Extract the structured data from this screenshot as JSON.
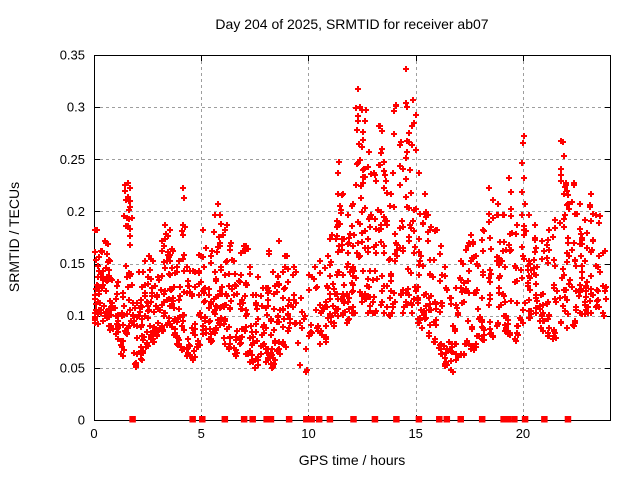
{
  "page": {
    "background": "#ffffff"
  },
  "chart_data": {
    "type": "scatter",
    "title": "Day 204 of 2025, SRMTID for receiver ab07",
    "xlabel": "GPS time / hours",
    "ylabel": "SRMTID / TECUs",
    "xlim": [
      0,
      24.06
    ],
    "ylim": [
      0,
      0.35
    ],
    "xticks": {
      "values": [
        0,
        5,
        10,
        15,
        20
      ],
      "labels": [
        "0",
        "5",
        "10",
        "15",
        "20"
      ]
    },
    "yticks": {
      "values": [
        0,
        0.05,
        0.1,
        0.15,
        0.2,
        0.25,
        0.3,
        0.35
      ],
      "labels": [
        "0",
        "0.05",
        "0.1",
        "0.15",
        "0.2",
        "0.25",
        "0.3",
        "0.35"
      ]
    },
    "grid": {
      "on": true,
      "color": "#9e9e9e",
      "dash": "3,3"
    },
    "axis_color": "#000000",
    "marker": {
      "shape": "plus",
      "color": "#ff0000",
      "size": 7,
      "stroke": 2
    },
    "zero_marker": {
      "shape": "filled-square",
      "color": "#ff0000",
      "size": 6.5
    },
    "legend": "none",
    "observed": {
      "ymax": 0.34,
      "ymax_at_hour": 14.65,
      "bulk_range": [
        0.05,
        0.2
      ]
    },
    "clusters_format": "[hour_center, point_count, y_min, y_max] per vertical pass column",
    "clusters": [
      [
        0.1,
        25,
        0.09,
        0.185
      ],
      [
        0.3,
        20,
        0.1,
        0.165
      ],
      [
        0.55,
        22,
        0.095,
        0.175
      ],
      [
        0.8,
        18,
        0.085,
        0.155
      ],
      [
        1.05,
        15,
        0.075,
        0.135
      ],
      [
        1.3,
        15,
        0.06,
        0.125
      ],
      [
        1.55,
        25,
        0.08,
        0.23
      ],
      [
        1.75,
        20,
        0.09,
        0.225
      ],
      [
        1.95,
        12,
        0.05,
        0.115
      ],
      [
        2.2,
        22,
        0.055,
        0.145
      ],
      [
        2.45,
        20,
        0.07,
        0.16
      ],
      [
        2.7,
        18,
        0.075,
        0.155
      ],
      [
        2.95,
        14,
        0.08,
        0.14
      ],
      [
        3.2,
        20,
        0.085,
        0.175
      ],
      [
        3.45,
        22,
        0.09,
        0.19
      ],
      [
        3.7,
        18,
        0.08,
        0.165
      ],
      [
        3.95,
        16,
        0.07,
        0.155
      ],
      [
        4.15,
        18,
        0.065,
        0.225
      ],
      [
        4.4,
        16,
        0.06,
        0.15
      ],
      [
        4.65,
        14,
        0.055,
        0.145
      ],
      [
        4.9,
        16,
        0.07,
        0.16
      ],
      [
        5.15,
        18,
        0.08,
        0.185
      ],
      [
        5.4,
        16,
        0.075,
        0.165
      ],
      [
        5.65,
        18,
        0.08,
        0.2
      ],
      [
        5.85,
        18,
        0.09,
        0.21
      ],
      [
        6.1,
        20,
        0.07,
        0.19
      ],
      [
        6.35,
        16,
        0.065,
        0.17
      ],
      [
        6.6,
        14,
        0.06,
        0.155
      ],
      [
        6.85,
        16,
        0.07,
        0.165
      ],
      [
        7.1,
        18,
        0.06,
        0.17
      ],
      [
        7.35,
        16,
        0.055,
        0.15
      ],
      [
        7.6,
        14,
        0.05,
        0.14
      ],
      [
        7.85,
        12,
        0.06,
        0.13
      ],
      [
        8.1,
        18,
        0.055,
        0.165
      ],
      [
        8.35,
        20,
        0.05,
        0.145
      ],
      [
        8.6,
        18,
        0.06,
        0.175
      ],
      [
        8.85,
        14,
        0.07,
        0.16
      ],
      [
        9.1,
        12,
        0.085,
        0.16
      ],
      [
        9.35,
        10,
        0.09,
        0.15
      ],
      [
        9.6,
        6,
        0.05,
        0.12
      ],
      [
        9.85,
        5,
        0.045,
        0.1
      ],
      [
        10.1,
        8,
        0.08,
        0.14
      ],
      [
        10.35,
        8,
        0.085,
        0.15
      ],
      [
        10.6,
        10,
        0.07,
        0.155
      ],
      [
        10.85,
        12,
        0.075,
        0.16
      ],
      [
        11.1,
        16,
        0.09,
        0.18
      ],
      [
        11.35,
        22,
        0.1,
        0.25
      ],
      [
        11.6,
        18,
        0.1,
        0.22
      ],
      [
        11.85,
        16,
        0.09,
        0.2
      ],
      [
        12.1,
        18,
        0.1,
        0.21
      ],
      [
        12.35,
        24,
        0.12,
        0.32
      ],
      [
        12.6,
        22,
        0.11,
        0.3
      ],
      [
        12.85,
        18,
        0.1,
        0.26
      ],
      [
        13.1,
        16,
        0.1,
        0.24
      ],
      [
        13.35,
        18,
        0.11,
        0.285
      ],
      [
        13.6,
        16,
        0.1,
        0.25
      ],
      [
        13.85,
        14,
        0.1,
        0.22
      ],
      [
        14.05,
        16,
        0.11,
        0.305
      ],
      [
        14.35,
        16,
        0.1,
        0.27
      ],
      [
        14.65,
        24,
        0.11,
        0.34
      ],
      [
        14.9,
        20,
        0.1,
        0.31
      ],
      [
        15.15,
        18,
        0.09,
        0.24
      ],
      [
        15.4,
        16,
        0.085,
        0.22
      ],
      [
        15.65,
        16,
        0.08,
        0.2
      ],
      [
        15.9,
        14,
        0.075,
        0.185
      ],
      [
        16.15,
        14,
        0.06,
        0.17
      ],
      [
        16.4,
        14,
        0.05,
        0.15
      ],
      [
        16.65,
        12,
        0.045,
        0.12
      ],
      [
        16.9,
        12,
        0.055,
        0.13
      ],
      [
        17.15,
        14,
        0.06,
        0.155
      ],
      [
        17.4,
        14,
        0.07,
        0.17
      ],
      [
        17.65,
        14,
        0.065,
        0.18
      ],
      [
        17.9,
        12,
        0.07,
        0.16
      ],
      [
        18.15,
        16,
        0.075,
        0.185
      ],
      [
        18.5,
        20,
        0.08,
        0.225
      ],
      [
        18.9,
        20,
        0.09,
        0.21
      ],
      [
        19.15,
        16,
        0.085,
        0.2
      ],
      [
        19.4,
        16,
        0.08,
        0.235
      ],
      [
        19.7,
        14,
        0.075,
        0.19
      ],
      [
        20.0,
        22,
        0.09,
        0.275
      ],
      [
        20.3,
        18,
        0.095,
        0.2
      ],
      [
        20.6,
        16,
        0.1,
        0.19
      ],
      [
        20.9,
        16,
        0.085,
        0.175
      ],
      [
        21.15,
        16,
        0.08,
        0.185
      ],
      [
        21.5,
        16,
        0.075,
        0.195
      ],
      [
        21.85,
        22,
        0.09,
        0.27
      ],
      [
        22.1,
        18,
        0.085,
        0.23
      ],
      [
        22.4,
        20,
        0.09,
        0.23
      ],
      [
        22.7,
        18,
        0.1,
        0.21
      ],
      [
        22.95,
        16,
        0.1,
        0.195
      ],
      [
        23.2,
        16,
        0.1,
        0.22
      ],
      [
        23.5,
        14,
        0.105,
        0.2
      ],
      [
        23.8,
        10,
        0.1,
        0.165
      ]
    ],
    "zero_hours": [
      1.8,
      4.6,
      5.05,
      6.1,
      7.0,
      7.4,
      8.05,
      8.25,
      9.1,
      9.9,
      10.15,
      10.5,
      11.0,
      12.1,
      13.1,
      14.1,
      15.15,
      16.1,
      16.45,
      17.1,
      18.1,
      19.1,
      19.3,
      19.6,
      20.1,
      21.0,
      22.1
    ],
    "seed": 7
  }
}
